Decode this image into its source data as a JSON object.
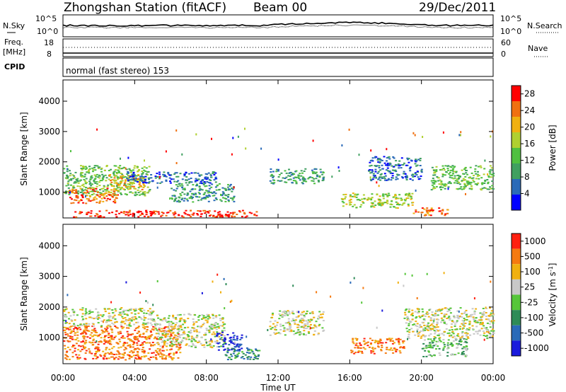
{
  "header": {
    "station": "Zhongshan Station (fitACF)",
    "beam": "Beam 00",
    "date": "29/Dec/2011",
    "cpid_text": "normal (fast stereo) 153"
  },
  "panel_labels": {
    "nsky": "N.Sky",
    "nsearch": "N.Search",
    "freq_top": "Freq.",
    "freq_unit": "[MHz]",
    "nave": "Nave",
    "cpid": "CPID",
    "nsky_ticks": [
      "10^5",
      "10^0"
    ],
    "nsearch_ticks": [
      "10^5",
      "10^0"
    ],
    "freq_ticks": [
      "18",
      "8"
    ],
    "nave_ticks": [
      "60",
      "0"
    ]
  },
  "colors": {
    "power": [
      "#0000ff",
      "#2a6ab8",
      "#40a060",
      "#50c040",
      "#b0d030",
      "#f0b010",
      "#f07010",
      "#ff0000"
    ],
    "velocity": [
      "#1a1adc",
      "#2a6ab8",
      "#2e8b57",
      "#56c63a",
      "#c8c8c8",
      "#f0b010",
      "#f57a10",
      "#ff2010"
    ]
  },
  "chart_data": [
    {
      "type": "heatmap",
      "title": "Power",
      "ylabel": "Slant Range [km]",
      "xlabel": "",
      "x_ticks": [
        "00:00",
        "04:00",
        "08:00",
        "12:00",
        "16:00",
        "20:00",
        "00:00"
      ],
      "y_ticks": [
        1000,
        2000,
        3000,
        4000
      ],
      "ylim": [
        150,
        4700
      ],
      "colorbar": {
        "label": "Power [dB]",
        "ticks": [
          "4",
          "8",
          "12",
          "16",
          "20",
          "24",
          "28"
        ],
        "range": [
          0,
          30
        ]
      },
      "regions": [
        {
          "t0": 0.0,
          "t1": 4.8,
          "r0": 900,
          "r1": 1900,
          "level": 3
        },
        {
          "t0": 0.3,
          "t1": 3.0,
          "r0": 650,
          "r1": 1150,
          "level": 6
        },
        {
          "t0": 2.5,
          "t1": 4.5,
          "r0": 1100,
          "r1": 1600,
          "level": 5
        },
        {
          "t0": 0.5,
          "t1": 10.8,
          "r0": 200,
          "r1": 420,
          "level": 7
        },
        {
          "t0": 3.5,
          "t1": 8.5,
          "r0": 1300,
          "r1": 1700,
          "level": 1
        },
        {
          "t0": 6.0,
          "t1": 9.5,
          "r0": 700,
          "r1": 1300,
          "level": 2
        },
        {
          "t0": 11.5,
          "t1": 14.5,
          "r0": 1300,
          "r1": 1800,
          "level": 2
        },
        {
          "t0": 15.5,
          "t1": 19.5,
          "r0": 500,
          "r1": 1000,
          "level": 4
        },
        {
          "t0": 17.0,
          "t1": 20.0,
          "r0": 1400,
          "r1": 2200,
          "level": 1
        },
        {
          "t0": 19.5,
          "t1": 21.5,
          "r0": 250,
          "r1": 500,
          "level": 6
        },
        {
          "t0": 20.5,
          "t1": 24.0,
          "r0": 1100,
          "r1": 1900,
          "level": 3
        }
      ]
    },
    {
      "type": "heatmap",
      "title": "Velocity",
      "ylabel": "Slant Range [km]",
      "xlabel": "Time UT",
      "x_ticks": [
        "00:00",
        "04:00",
        "08:00",
        "12:00",
        "16:00",
        "20:00",
        "00:00"
      ],
      "y_ticks": [
        1000,
        2000,
        3000,
        4000
      ],
      "ylim": [
        150,
        4700
      ],
      "colorbar": {
        "label": "Velocity [m s^-1]",
        "ticks": [
          "1000",
          "500",
          "100",
          "25",
          "-25",
          "-100",
          "-500",
          "-1000"
        ],
        "range": [
          1000,
          -1000
        ]
      },
      "regions": [
        {
          "t0": 0.0,
          "t1": 6.5,
          "r0": 300,
          "r1": 1400,
          "level": 6
        },
        {
          "t0": 0.0,
          "t1": 5.0,
          "r0": 1400,
          "r1": 2000,
          "level": 4
        },
        {
          "t0": 5.0,
          "t1": 9.0,
          "r0": 700,
          "r1": 1800,
          "level": 4
        },
        {
          "t0": 8.5,
          "t1": 10.0,
          "r0": 600,
          "r1": 1200,
          "level": 0
        },
        {
          "t0": 9.0,
          "t1": 11.0,
          "r0": 300,
          "r1": 700,
          "level": 2
        },
        {
          "t0": 11.5,
          "t1": 14.5,
          "r0": 1100,
          "r1": 1900,
          "level": 4
        },
        {
          "t0": 16.0,
          "t1": 19.0,
          "r0": 500,
          "r1": 1000,
          "level": 6
        },
        {
          "t0": 19.0,
          "t1": 24.0,
          "r0": 1000,
          "r1": 2000,
          "level": 4
        },
        {
          "t0": 20.0,
          "t1": 22.5,
          "r0": 400,
          "r1": 1000,
          "level": 3
        }
      ]
    }
  ]
}
